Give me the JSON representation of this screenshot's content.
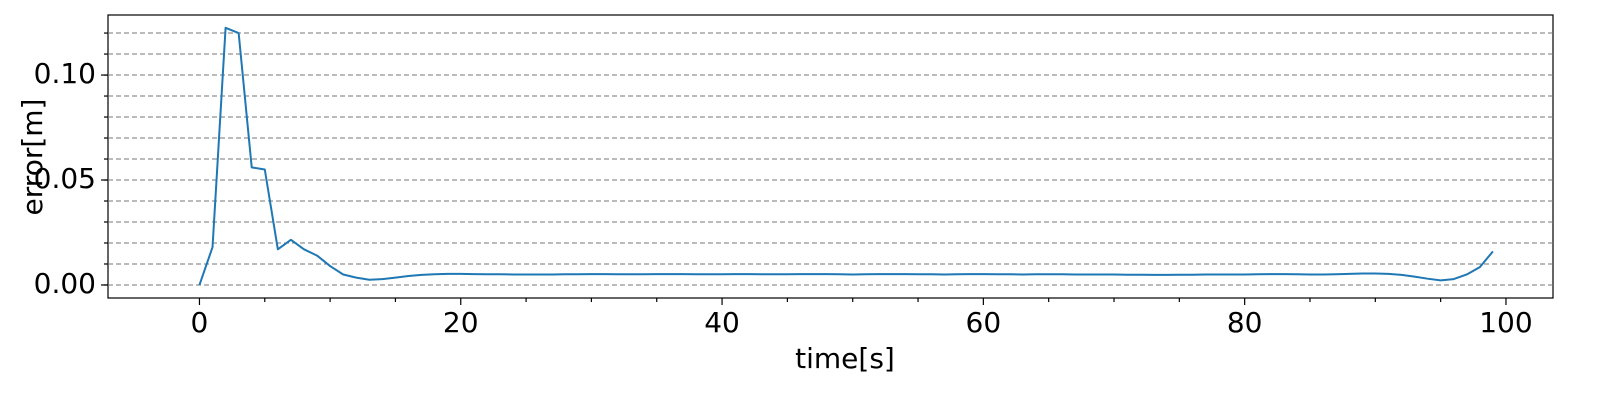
{
  "chart_data": {
    "type": "line",
    "xlabel": "time[s]",
    "ylabel": "error[m]",
    "x": [
      0,
      1,
      2,
      3,
      4,
      5,
      6,
      7,
      8,
      9,
      10,
      11,
      12,
      13,
      14,
      15,
      16,
      17,
      18,
      19,
      20,
      21,
      22,
      23,
      24,
      25,
      26,
      27,
      28,
      29,
      30,
      31,
      32,
      33,
      34,
      35,
      36,
      37,
      38,
      39,
      40,
      41,
      42,
      43,
      44,
      45,
      46,
      47,
      48,
      49,
      50,
      51,
      52,
      53,
      54,
      55,
      56,
      57,
      58,
      59,
      60,
      61,
      62,
      63,
      64,
      65,
      66,
      67,
      68,
      69,
      70,
      71,
      72,
      73,
      74,
      75,
      76,
      77,
      78,
      79,
      80,
      81,
      82,
      83,
      84,
      85,
      86,
      87,
      88,
      89,
      90,
      91,
      92,
      93,
      94,
      95,
      96,
      97,
      98,
      99
    ],
    "series": [
      {
        "color": "#1f77b4",
        "values": [
          0.0,
          0.018,
          0.1225,
          0.12,
          0.056,
          0.055,
          0.017,
          0.0215,
          0.017,
          0.014,
          0.009,
          0.005,
          0.0035,
          0.0025,
          0.0028,
          0.0035,
          0.0043,
          0.0048,
          0.0051,
          0.0053,
          0.0053,
          0.0052,
          0.0051,
          0.0051,
          0.005,
          0.005,
          0.005,
          0.005,
          0.0051,
          0.0051,
          0.0052,
          0.0052,
          0.0051,
          0.0051,
          0.0051,
          0.0052,
          0.0052,
          0.0052,
          0.0051,
          0.0051,
          0.0051,
          0.0052,
          0.0052,
          0.0051,
          0.0051,
          0.0051,
          0.0052,
          0.0052,
          0.0052,
          0.0051,
          0.005,
          0.0051,
          0.0052,
          0.0052,
          0.0052,
          0.0051,
          0.0051,
          0.005,
          0.0051,
          0.0052,
          0.0052,
          0.0051,
          0.0051,
          0.005,
          0.0051,
          0.0051,
          0.0051,
          0.005,
          0.005,
          0.005,
          0.005,
          0.0049,
          0.0049,
          0.0048,
          0.0048,
          0.0049,
          0.0049,
          0.005,
          0.005,
          0.005,
          0.005,
          0.0051,
          0.0052,
          0.0052,
          0.0051,
          0.005,
          0.005,
          0.0051,
          0.0053,
          0.0055,
          0.0055,
          0.0053,
          0.0048,
          0.004,
          0.003,
          0.0022,
          0.0028,
          0.005,
          0.0085,
          0.016
        ]
      }
    ],
    "xlim": [
      -7,
      103.6
    ],
    "ylim": [
      -0.0062,
      0.1286
    ],
    "xticks": [
      0,
      20,
      40,
      60,
      80,
      100
    ],
    "xminor_ticks": [
      5,
      10,
      15,
      25,
      30,
      35,
      45,
      50,
      55,
      65,
      70,
      75,
      85,
      90,
      95
    ],
    "yticks": [
      {
        "value": 0,
        "label": "0.00"
      },
      {
        "value": 0.05,
        "label": "0.05"
      },
      {
        "value": 0.1,
        "label": "0.10"
      }
    ],
    "yminor_ticks": [
      0,
      0.01,
      0.02,
      0.03,
      0.04,
      0.05,
      0.06,
      0.07,
      0.08,
      0.09,
      0.1,
      0.11,
      0.12
    ],
    "grid": true
  }
}
